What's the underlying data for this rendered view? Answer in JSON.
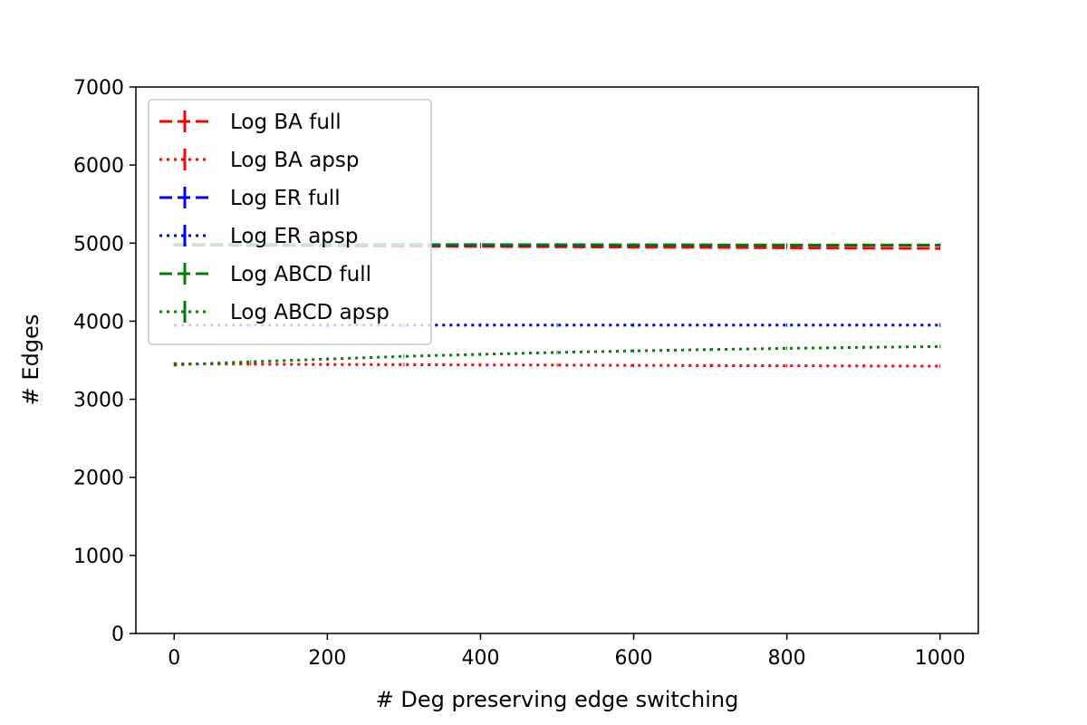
{
  "chart_data": {
    "type": "line",
    "title": "",
    "xlabel": "# Deg preserving edge switching",
    "ylabel": "# Edges",
    "xlim": [
      -50,
      1050
    ],
    "ylim": [
      0,
      7000
    ],
    "xticks": [
      0,
      200,
      400,
      600,
      800,
      1000
    ],
    "yticks": [
      0,
      1000,
      2000,
      3000,
      4000,
      5000,
      6000,
      7000
    ],
    "legend_position": "upper-left",
    "grid": false,
    "series": [
      {
        "name": "Log BA full",
        "color": "#ff0000",
        "linestyle": "dashed",
        "x": [
          0,
          100,
          200,
          300,
          400,
          500,
          600,
          700,
          800,
          900,
          1000
        ],
        "values": [
          4975,
          4971,
          4966,
          4962,
          4958,
          4953,
          4949,
          4945,
          4940,
          4936,
          4932
        ]
      },
      {
        "name": "Log BA apsp",
        "color": "#ff0000",
        "linestyle": "dotted",
        "x": [
          0,
          100,
          200,
          300,
          400,
          500,
          600,
          700,
          800,
          900,
          1000
        ],
        "values": [
          3455,
          3450,
          3446,
          3443,
          3440,
          3437,
          3434,
          3431,
          3429,
          3427,
          3425
        ]
      },
      {
        "name": "Log ER full",
        "color": "#0000ff",
        "linestyle": "dashed",
        "x": [
          0,
          100,
          200,
          300,
          400,
          500,
          600,
          700,
          800,
          900,
          1000
        ],
        "values": [
          4975,
          4975,
          4975,
          4975,
          4975,
          4974,
          4974,
          4974,
          4974,
          4974,
          4974
        ]
      },
      {
        "name": "Log ER apsp",
        "color": "#0000ff",
        "linestyle": "dotted",
        "x": [
          0,
          100,
          200,
          300,
          400,
          500,
          600,
          700,
          800,
          900,
          1000
        ],
        "values": [
          3950,
          3950,
          3950,
          3950,
          3950,
          3950,
          3950,
          3950,
          3950,
          3950,
          3950
        ]
      },
      {
        "name": "Log ABCD full",
        "color": "#008000",
        "linestyle": "dashed",
        "x": [
          0,
          100,
          200,
          300,
          400,
          500,
          600,
          700,
          800,
          900,
          1000
        ],
        "values": [
          4985,
          4984,
          4983,
          4982,
          4981,
          4980,
          4979,
          4978,
          4977,
          4976,
          4975
        ]
      },
      {
        "name": "Log ABCD apsp",
        "color": "#008000",
        "linestyle": "dotted",
        "x": [
          0,
          100,
          200,
          300,
          400,
          500,
          600,
          700,
          800,
          900,
          1000
        ],
        "values": [
          3440,
          3480,
          3515,
          3550,
          3575,
          3600,
          3620,
          3637,
          3652,
          3665,
          3675
        ]
      }
    ]
  }
}
